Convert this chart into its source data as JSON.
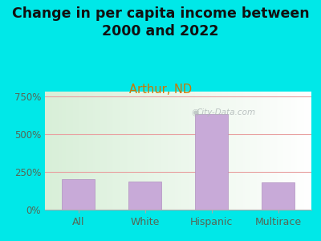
{
  "title": "Change in per capita income between\n2000 and 2022",
  "subtitle": "Arthur, ND",
  "categories": [
    "All",
    "White",
    "Hispanic",
    "Multirace"
  ],
  "values": [
    200,
    188,
    630,
    183
  ],
  "bar_color": "#c8aad8",
  "bar_edge_color": "#b090c0",
  "title_fontsize": 12.5,
  "subtitle_fontsize": 10.5,
  "subtitle_color": "#cc7700",
  "title_color": "#111111",
  "outer_bg_color": "#00e8e8",
  "plot_bg_left": "#d8efd8",
  "plot_bg_right": "#f0f8f0",
  "grid_color": "#e8a0a0",
  "yticks": [
    0,
    250,
    500,
    750
  ],
  "ylim": [
    0,
    780
  ],
  "tick_label_color": "#556655",
  "watermark_text": "City-Data.com",
  "watermark_color": "#b0b8b8"
}
